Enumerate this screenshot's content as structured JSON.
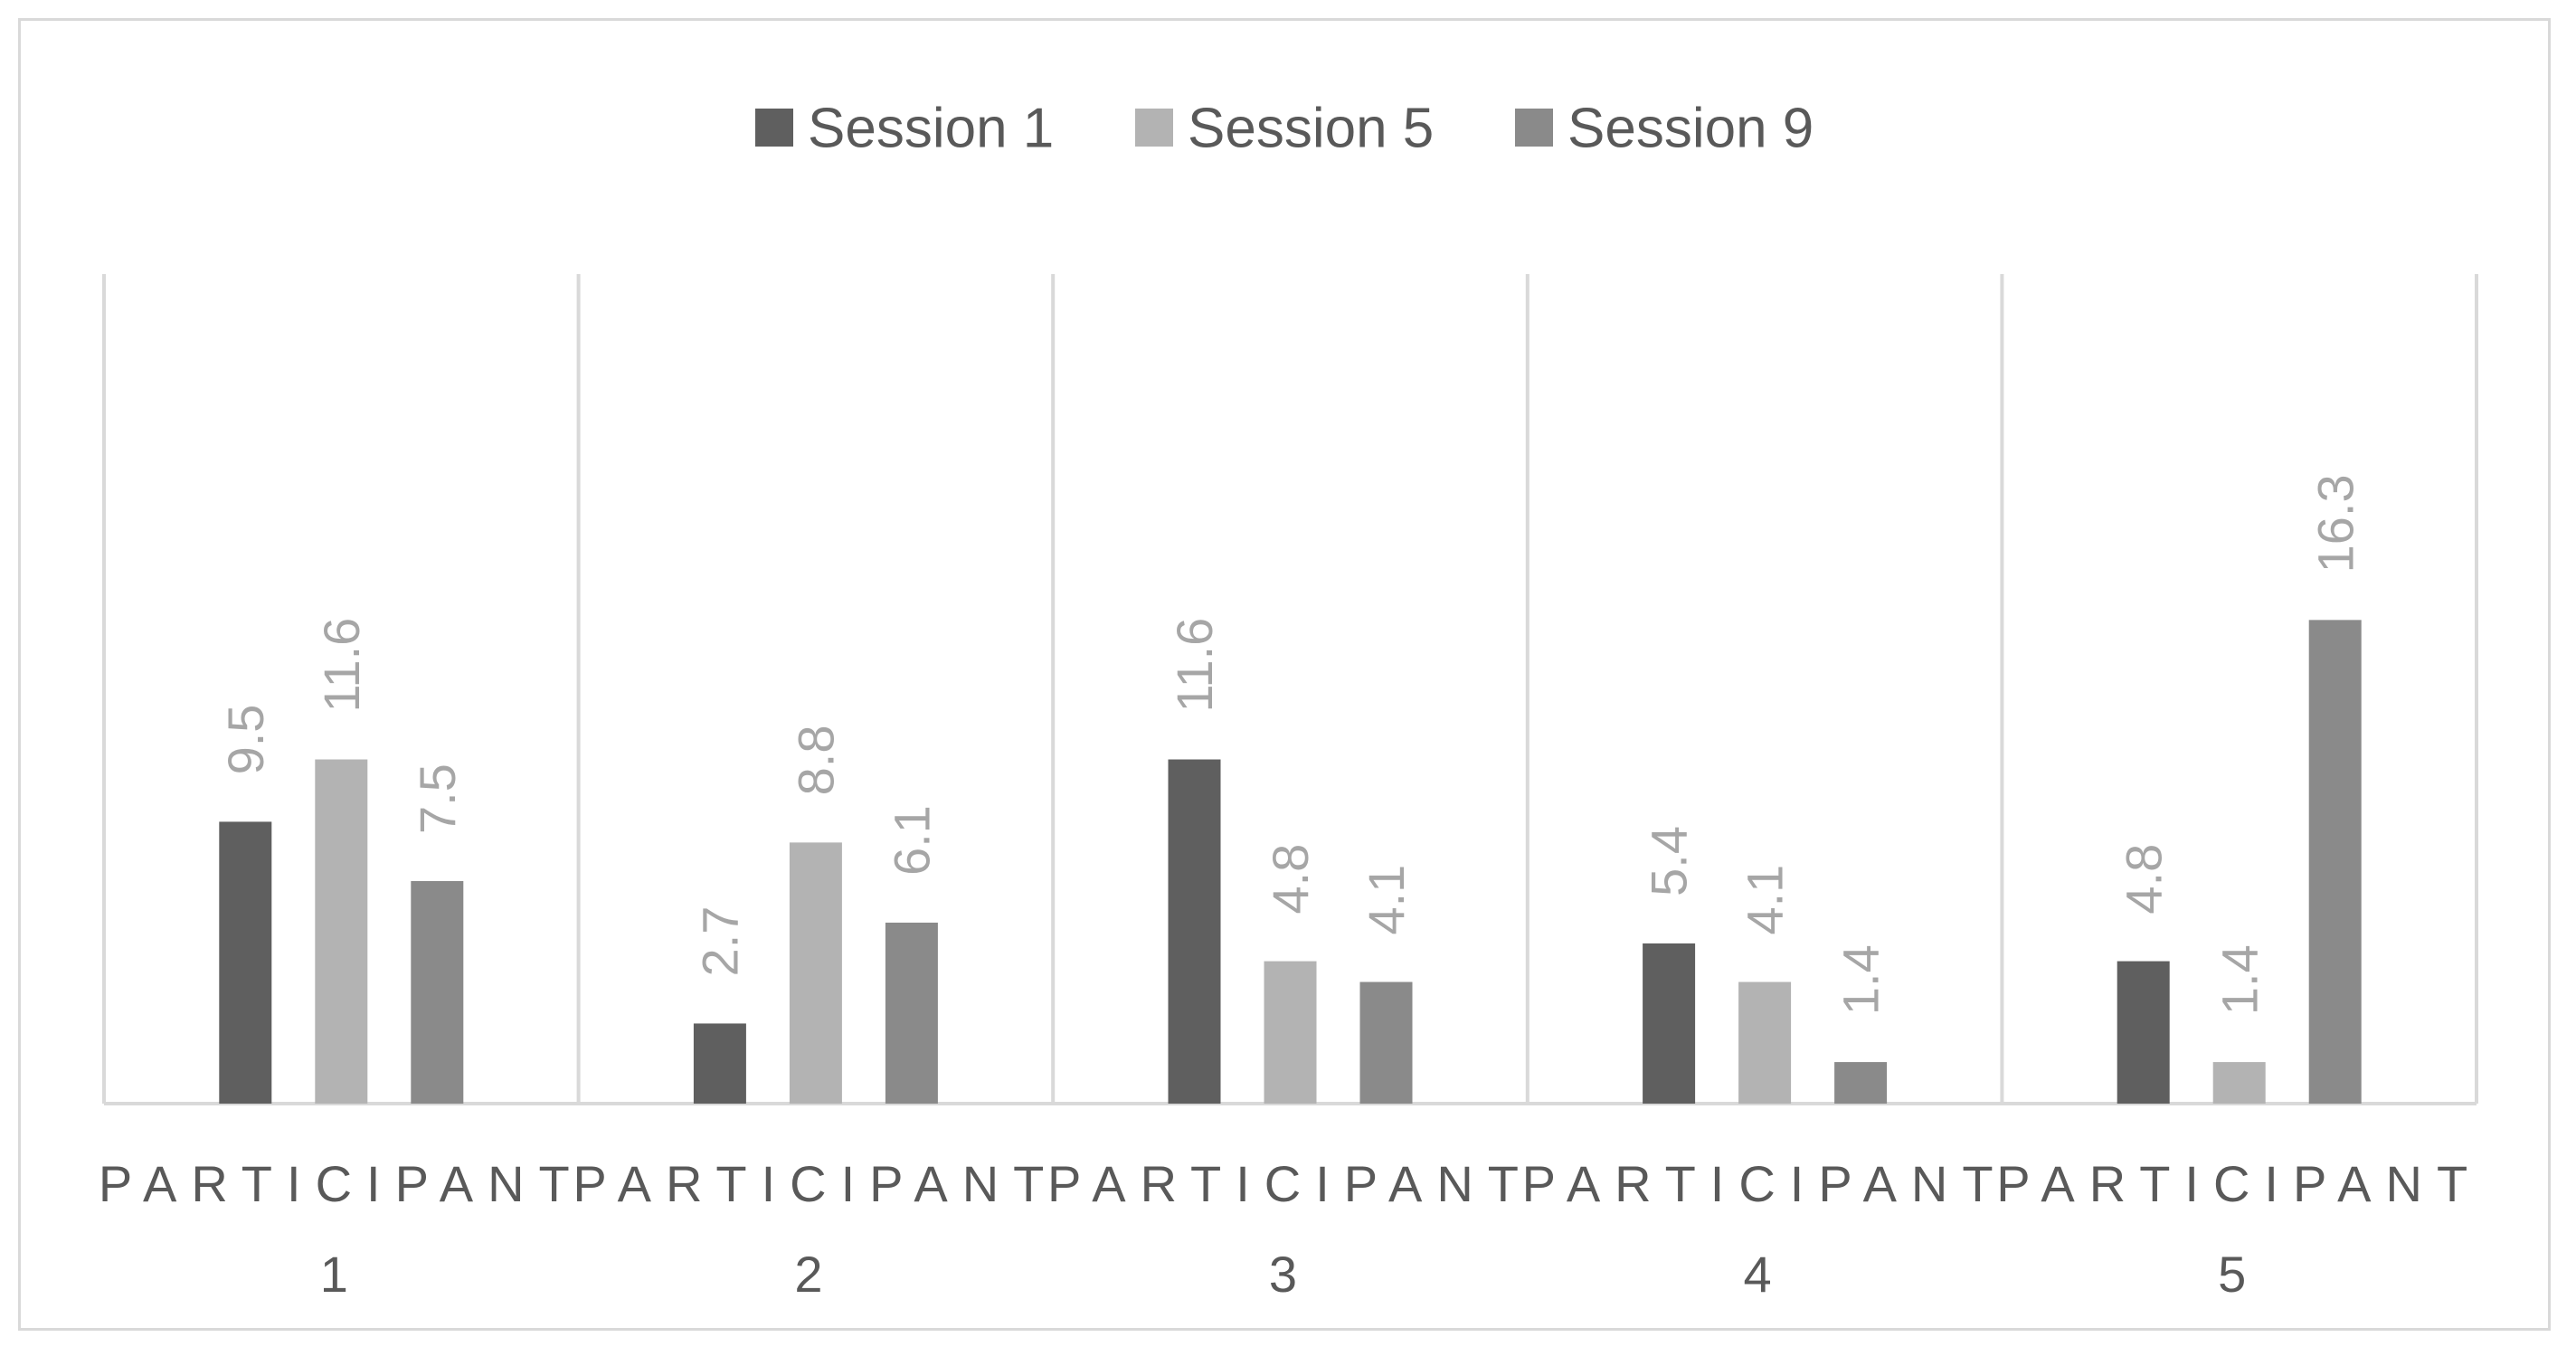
{
  "chart_data": {
    "type": "bar",
    "categories": [
      [
        "PARTICIPANT",
        "1"
      ],
      [
        "PARTICIPANT",
        "2"
      ],
      [
        "PARTICIPANT",
        "3"
      ],
      [
        "PARTICIPANT",
        "4"
      ],
      [
        "PARTICIPANT",
        "5"
      ]
    ],
    "series": [
      {
        "name": "Session 1",
        "color": "#5f5f5f",
        "values": [
          9.5,
          2.7,
          11.6,
          5.4,
          4.8
        ],
        "labels": [
          "9.5",
          "2.7",
          "11.6",
          "5.4",
          "4.8"
        ]
      },
      {
        "name": "Session 5",
        "color": "#b3b3b3",
        "values": [
          11.6,
          8.8,
          4.8,
          4.1,
          1.4
        ],
        "labels": [
          "11.6",
          "8.8",
          "4.8",
          "4.1",
          "1.4"
        ]
      },
      {
        "name": "Session 9",
        "color": "#8a8a8a",
        "values": [
          7.5,
          6.1,
          4.1,
          1.4,
          16.3
        ],
        "labels": [
          "7.5",
          "6.1",
          "4.1",
          "1.4",
          "16.3"
        ]
      }
    ],
    "ylim": [
      0,
      18
    ],
    "title": "",
    "xlabel": "",
    "ylabel": "",
    "legend_position": "top",
    "data_labels": "rotated-vertical",
    "gridlines": "vertical category separators",
    "colors": {
      "axis": "#d9d9d9",
      "data_label": "#a6a6a6",
      "text": "#595959"
    }
  }
}
